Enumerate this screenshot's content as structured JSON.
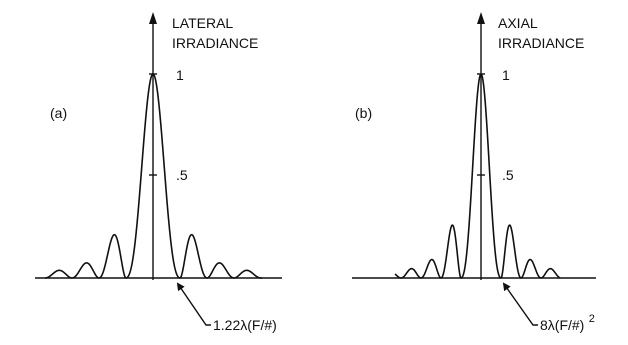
{
  "panel_a": {
    "letter": "(a)",
    "title_line1": "LATERAL",
    "title_line2": "IRRADIANCE",
    "tick_top": "1",
    "tick_mid": ".5",
    "annotation": "1.22λ(F/#)"
  },
  "panel_b": {
    "letter": "(b)",
    "title_line1": "AXIAL",
    "title_line2": "IRRADIANCE",
    "tick_top": "1",
    "tick_mid": ".5",
    "annotation_main": "8λ(F/#)",
    "annotation_sup": "2"
  },
  "colors": {
    "ink": "#111111",
    "background": "#ffffff"
  }
}
